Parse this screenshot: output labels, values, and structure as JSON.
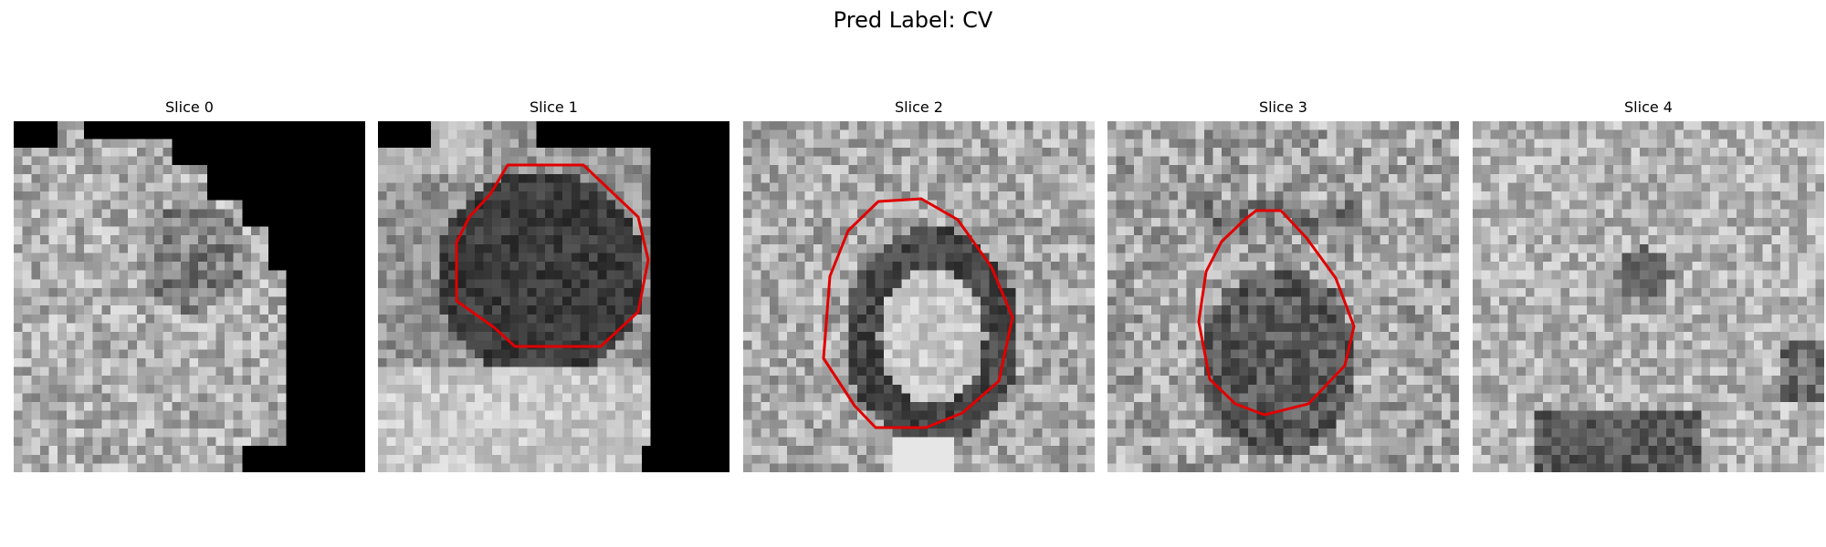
{
  "figure": {
    "title": "Pred Label: CV",
    "contour_color": "#e00000",
    "slices": [
      {
        "title": "Slice 0",
        "has_contour": false
      },
      {
        "title": "Slice 1",
        "has_contour": true
      },
      {
        "title": "Slice 2",
        "has_contour": true
      },
      {
        "title": "Slice 3",
        "has_contour": true
      },
      {
        "title": "Slice 4",
        "has_contour": false
      }
    ]
  }
}
